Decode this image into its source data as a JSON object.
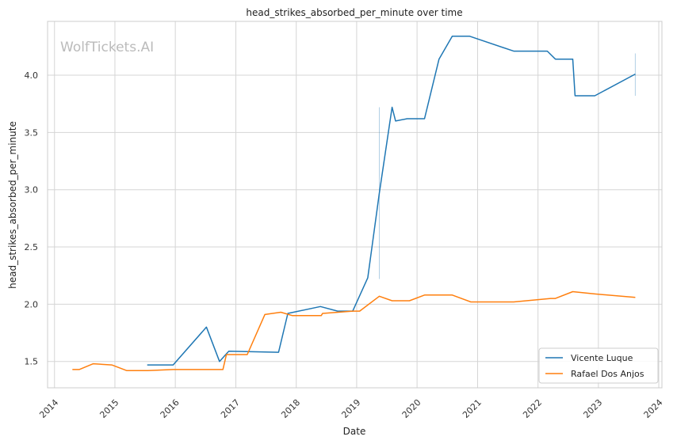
{
  "watermark": "WolfTickets.AI",
  "chart_data": {
    "type": "line",
    "title": "head_strikes_absorbed_per_minute over time",
    "xlabel": "Date",
    "ylabel": "head_strikes_absorbed_per_minute",
    "xlim": [
      "2013-11-20",
      "2024-01-20"
    ],
    "ylim": [
      1.27,
      4.47
    ],
    "x_ticks": [
      "2014",
      "2015",
      "2016",
      "2017",
      "2018",
      "2019",
      "2020",
      "2021",
      "2022",
      "2023",
      "2024"
    ],
    "y_ticks": [
      1.5,
      2.0,
      2.5,
      3.0,
      3.5,
      4.0
    ],
    "grid": true,
    "legend_position": "bottom-right",
    "colors": {
      "Vicente Luque": "#1f77b4",
      "Rafael Dos Anjos": "#ff7f0e",
      "grid": "#d5d5d5",
      "watermark": "#bbbbbb"
    },
    "series": [
      {
        "name": "Vicente Luque",
        "color": "#1f77b4",
        "points": [
          [
            "2015-07-15",
            1.47
          ],
          [
            "2015-12-19",
            1.47
          ],
          [
            "2016-07-07",
            1.8
          ],
          [
            "2016-09-24",
            1.5
          ],
          [
            "2016-11-19",
            1.59
          ],
          [
            "2017-09-16",
            1.58
          ],
          [
            "2017-11-11",
            1.92
          ],
          [
            "2018-05-27",
            1.98
          ],
          [
            "2018-09-08",
            1.94
          ],
          [
            "2018-12-08",
            1.94
          ],
          [
            "2019-03-09",
            2.23
          ],
          [
            "2019-05-18",
            2.97
          ],
          [
            "2019-08-03",
            3.72
          ],
          [
            "2019-08-24",
            3.6
          ],
          [
            "2019-11-02",
            3.62
          ],
          [
            "2020-02-15",
            3.62
          ],
          [
            "2020-05-13",
            4.14
          ],
          [
            "2020-08-01",
            4.34
          ],
          [
            "2020-11-14",
            4.34
          ],
          [
            "2021-08-07",
            4.21
          ],
          [
            "2022-02-26",
            4.21
          ],
          [
            "2022-04-16",
            4.14
          ],
          [
            "2022-07-30",
            4.14
          ],
          [
            "2022-08-13",
            3.82
          ],
          [
            "2022-12-10",
            3.82
          ],
          [
            "2023-08-12",
            4.01
          ]
        ],
        "error_bars": [
          {
            "x": "2019-05-18",
            "low": 2.22,
            "high": 3.72
          },
          {
            "x": "2023-08-12",
            "low": 3.82,
            "high": 4.19
          }
        ]
      },
      {
        "name": "Rafael Dos Anjos",
        "color": "#ff7f0e",
        "points": [
          [
            "2014-04-19",
            1.43
          ],
          [
            "2014-05-30",
            1.43
          ],
          [
            "2014-08-23",
            1.48
          ],
          [
            "2014-12-13",
            1.47
          ],
          [
            "2015-03-14",
            1.42
          ],
          [
            "2015-07-18",
            1.42
          ],
          [
            "2015-12-19",
            1.43
          ],
          [
            "2016-07-07",
            1.43
          ],
          [
            "2016-10-15",
            1.43
          ],
          [
            "2016-11-05",
            1.56
          ],
          [
            "2017-03-11",
            1.56
          ],
          [
            "2017-06-25",
            1.91
          ],
          [
            "2017-09-30",
            1.93
          ],
          [
            "2017-12-09",
            1.9
          ],
          [
            "2018-06-01",
            1.9
          ],
          [
            "2018-06-09",
            1.92
          ],
          [
            "2018-12-08",
            1.94
          ],
          [
            "2019-01-19",
            1.94
          ],
          [
            "2019-05-18",
            2.07
          ],
          [
            "2019-08-03",
            2.03
          ],
          [
            "2019-11-16",
            2.03
          ],
          [
            "2020-02-15",
            2.08
          ],
          [
            "2020-08-01",
            2.08
          ],
          [
            "2020-11-21",
            2.02
          ],
          [
            "2021-08-07",
            2.02
          ],
          [
            "2022-03-19",
            2.05
          ],
          [
            "2022-04-16",
            2.05
          ],
          [
            "2022-07-30",
            2.11
          ],
          [
            "2022-12-10",
            2.09
          ],
          [
            "2023-08-12",
            2.06
          ]
        ]
      }
    ]
  }
}
